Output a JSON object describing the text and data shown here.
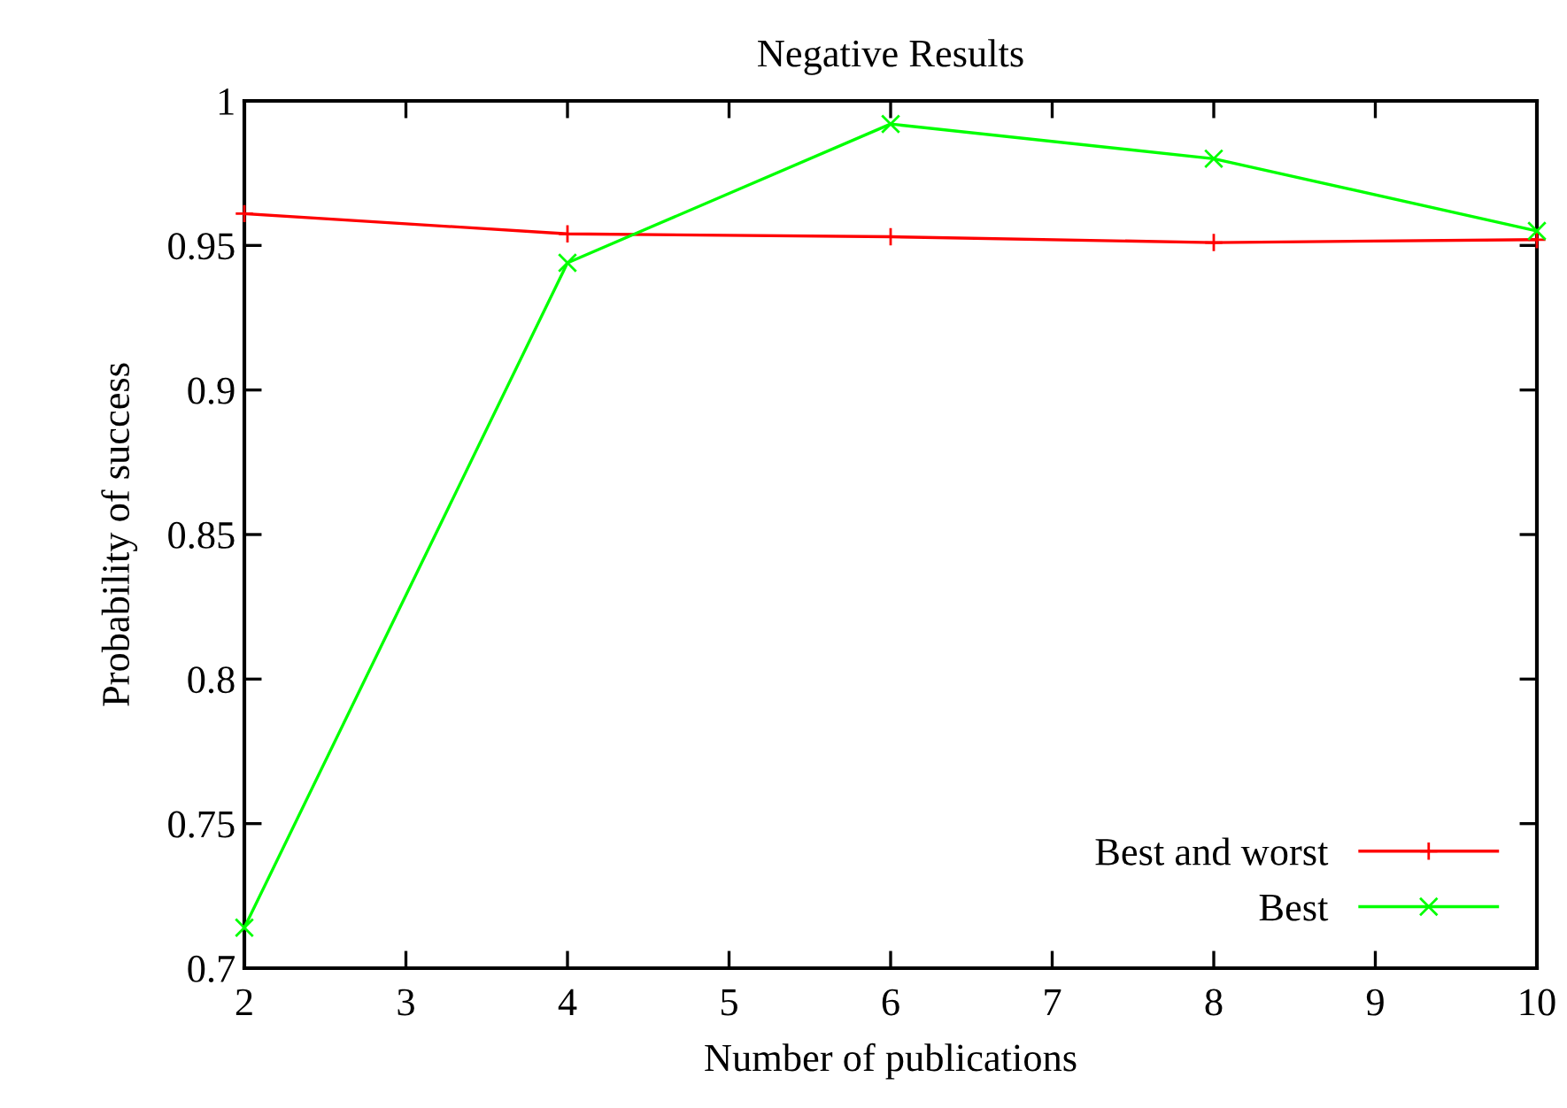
{
  "chart_data": {
    "type": "line",
    "title": "Negative Results",
    "xlabel": "Number of publications",
    "ylabel": "Probability of success",
    "x": [
      2,
      4,
      6,
      8,
      10
    ],
    "series": [
      {
        "name": "Best and worst",
        "color": "#ff0000",
        "marker": "plus",
        "values": [
          0.961,
          0.954,
          0.953,
          0.951,
          0.952
        ]
      },
      {
        "name": "Best",
        "color": "#00ff00",
        "marker": "cross",
        "values": [
          0.714,
          0.944,
          0.992,
          0.98,
          0.955
        ]
      }
    ],
    "xlim": [
      2,
      10
    ],
    "xticks": [
      2,
      3,
      4,
      5,
      6,
      7,
      8,
      9,
      10
    ],
    "ylim": [
      0.7,
      1
    ],
    "yticks": [
      0.7,
      0.75,
      0.8,
      0.85,
      0.9,
      0.95,
      1
    ],
    "grid": false,
    "legend": "bottom right",
    "line_style": "solid"
  }
}
